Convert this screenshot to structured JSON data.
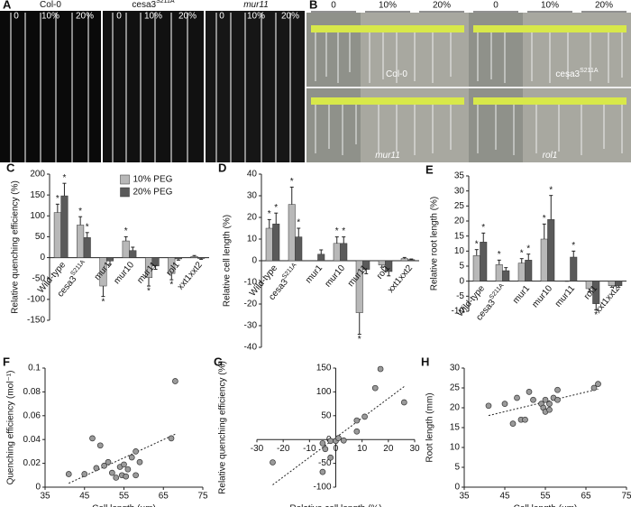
{
  "panel_a": {
    "label": "A",
    "groups": [
      {
        "name": "Col-0",
        "name_sup": null,
        "columns": [
          "0",
          "10%",
          "20%"
        ]
      },
      {
        "name": "cesa3",
        "name_sup": "S211A",
        "columns": [
          "0",
          "10%",
          "20%"
        ]
      },
      {
        "name": "mur11",
        "name_sup": null,
        "columns": [
          "0",
          "10%",
          "20%"
        ]
      }
    ]
  },
  "panel_b": {
    "label": "B",
    "columns": [
      "0",
      "10%",
      "20%",
      "0",
      "10%",
      "20%"
    ],
    "genotypes": [
      "Col-0",
      "cesa3",
      "mur11",
      "rol1"
    ],
    "genotype_sups": [
      null,
      "S211A",
      null,
      null
    ]
  },
  "chart_data": [
    {
      "type": "bar",
      "panel_label": "C",
      "y_label": "Relative quenching efficiency (%)",
      "categories": [
        "Wild-type",
        "cesa3",
        "mur1",
        "mur10",
        "mur11",
        "rol1",
        "xxt1xxt2"
      ],
      "category_sups": [
        null,
        "S211A",
        null,
        null,
        null,
        null,
        null
      ],
      "ylim": [
        -150,
        200
      ],
      "yticks": [
        -150,
        -100,
        -50,
        0,
        50,
        100,
        150,
        200
      ],
      "legend": "upper center",
      "series": [
        {
          "name": "10% PEG",
          "color": "#b8b8b8",
          "values": [
            108,
            78,
            -68,
            40,
            -48,
            -38,
            3
          ],
          "errors": [
            20,
            20,
            25,
            10,
            20,
            15,
            2
          ],
          "significance": [
            "*",
            "*",
            "*",
            "*",
            "*",
            "*",
            null
          ]
        },
        {
          "name": "20% PEG",
          "color": "#5a5a5a",
          "values": [
            148,
            48,
            -8,
            17,
            -20,
            -3,
            -2
          ],
          "errors": [
            30,
            12,
            8,
            8,
            8,
            3,
            2
          ],
          "significance": [
            "*",
            "*",
            null,
            null,
            null,
            null,
            null
          ]
        }
      ]
    },
    {
      "type": "bar",
      "panel_label": "D",
      "y_label": "Relative cell length (%)",
      "categories": [
        "Wild-type",
        "cesa3",
        "mur1",
        "mur10",
        "mur11",
        "rol1",
        "xxt1xxt2"
      ],
      "category_sups": [
        null,
        "S211A",
        null,
        null,
        null,
        null,
        null
      ],
      "ylim": [
        -40,
        40
      ],
      "yticks": [
        -40,
        -30,
        -20,
        -10,
        0,
        10,
        20,
        30,
        40
      ],
      "series": [
        {
          "name": "10% PEG",
          "color": "#b8b8b8",
          "values": [
            15,
            26,
            0,
            8,
            -24,
            -2,
            1
          ],
          "errors": [
            4,
            8,
            0,
            3,
            10,
            1,
            0.5
          ],
          "significance": [
            "*",
            "*",
            null,
            "*",
            "*",
            null,
            null
          ]
        },
        {
          "name": "20% PEG",
          "color": "#5a5a5a",
          "values": [
            17,
            11,
            3,
            8,
            -4,
            -5,
            0.5
          ],
          "errors": [
            5,
            4,
            2,
            3,
            2,
            2,
            0.3
          ],
          "significance": [
            "*",
            "*",
            null,
            "*",
            null,
            null,
            null
          ]
        }
      ]
    },
    {
      "type": "bar",
      "panel_label": "E",
      "y_label": "Relative root length (%)",
      "categories": [
        "Wild-type",
        "cesa3",
        "mur1",
        "mur10",
        "mur11",
        "rol1",
        "xxt1xxt2"
      ],
      "category_sups": [
        null,
        "S211A",
        null,
        null,
        null,
        null,
        null
      ],
      "ylim": [
        -10,
        35
      ],
      "yticks": [
        -10,
        -5,
        0,
        5,
        10,
        15,
        20,
        25,
        30,
        35
      ],
      "series": [
        {
          "name": "10% PEG",
          "color": "#b8b8b8",
          "values": [
            8.5,
            5.5,
            6,
            14,
            0,
            -2.5,
            -1.5
          ],
          "errors": [
            2,
            1.5,
            1.5,
            5,
            0,
            1,
            0.5
          ],
          "significance": [
            "*",
            "*",
            "*",
            "*",
            null,
            null,
            null
          ]
        },
        {
          "name": "20% PEG",
          "color": "#5a5a5a",
          "values": [
            13,
            3.5,
            7,
            20.5,
            8,
            -7.5,
            -1.5
          ],
          "errors": [
            3,
            1,
            2,
            8,
            2,
            2,
            0.5
          ],
          "significance": [
            "*",
            null,
            "*",
            "*",
            "*",
            "*",
            null
          ]
        }
      ]
    },
    {
      "type": "scatter",
      "panel_label": "F",
      "x_label": "Cell length (µm)",
      "y_label": "Quenching efficiency (mol⁻¹)",
      "color": "#9a9a9a",
      "trendline": true,
      "xlim": [
        35,
        75
      ],
      "xticks": [
        35,
        45,
        55,
        65,
        75
      ],
      "ylim": [
        0,
        0.1
      ],
      "yticks": [
        0,
        0.02,
        0.04,
        0.06,
        0.08,
        0.1
      ],
      "x": [
        41,
        45,
        47,
        48,
        49,
        50,
        51,
        52,
        53,
        54,
        54.5,
        55,
        55.5,
        56,
        57,
        58,
        58,
        59,
        67,
        68
      ],
      "y": [
        0.011,
        0.011,
        0.041,
        0.016,
        0.035,
        0.018,
        0.021,
        0.012,
        0.008,
        0.017,
        0.01,
        0.019,
        0.009,
        0.015,
        0.025,
        0.03,
        0.01,
        0.021,
        0.041,
        0.089
      ]
    },
    {
      "type": "scatter",
      "panel_label": "G",
      "x_label": "Relative cell length (%)",
      "y_label": "Relative quenching efficiency (%)",
      "color": "#9a9a9a",
      "trendline": true,
      "axes_at_zero": true,
      "xlim": [
        -30,
        30
      ],
      "xticks": [
        -30,
        -20,
        -10,
        0,
        10,
        20,
        30
      ],
      "ylim": [
        -100,
        150
      ],
      "yticks": [
        -100,
        -50,
        0,
        50,
        100,
        150
      ],
      "x": [
        -24,
        -5,
        -2,
        -4,
        -5,
        0,
        1,
        3,
        8,
        8,
        11,
        15,
        17,
        26,
        -2
      ],
      "y": [
        -48,
        -68,
        -38,
        -20,
        -8,
        -3,
        3,
        -2,
        40,
        17,
        48,
        108,
        148,
        78,
        -3
      ]
    },
    {
      "type": "scatter",
      "panel_label": "H",
      "x_label": "Cell length (µm)",
      "y_label": "Root length (mm)",
      "color": "#9a9a9a",
      "trendline": true,
      "xlim": [
        35,
        75
      ],
      "xticks": [
        35,
        45,
        55,
        65,
        75
      ],
      "ylim": [
        0,
        30
      ],
      "yticks": [
        0,
        5,
        10,
        15,
        20,
        25,
        30
      ],
      "x": [
        41,
        45,
        47,
        48,
        49,
        50,
        51,
        52,
        54,
        54.5,
        55,
        55,
        56,
        56,
        57,
        58,
        58,
        67,
        68
      ],
      "y": [
        20.5,
        21,
        16,
        22.5,
        17,
        17,
        24,
        22,
        21,
        20,
        22,
        19,
        21,
        19.5,
        22.5,
        24.5,
        22,
        25,
        26
      ]
    }
  ]
}
